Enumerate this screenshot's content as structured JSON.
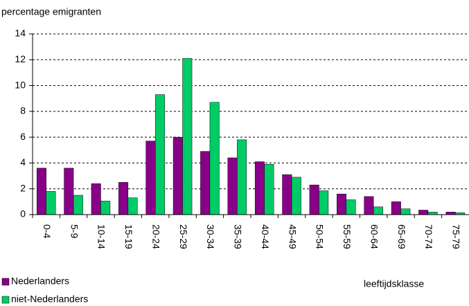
{
  "chart_data": {
    "type": "bar",
    "ylabel": "percentage emigranten",
    "xlabel": "leeftijdsklasse",
    "categories": [
      "0-4",
      "5-9",
      "10-14",
      "15-19",
      "20-24",
      "25-29",
      "30-34",
      "35-39",
      "40-44",
      "45-49",
      "50-54",
      "55-59",
      "60-64",
      "65-69",
      "70-74",
      "75-79"
    ],
    "series": [
      {
        "name": "Nederlanders",
        "color": "#880088",
        "values": [
          3.6,
          3.6,
          2.4,
          2.5,
          5.7,
          6.0,
          4.9,
          4.4,
          4.1,
          3.1,
          2.3,
          1.6,
          1.4,
          1.0,
          0.35,
          0.2
        ]
      },
      {
        "name": "niet-Nederlanders",
        "color": "#00cc66",
        "values": [
          1.8,
          1.5,
          1.05,
          1.3,
          9.3,
          12.1,
          8.7,
          5.8,
          3.9,
          2.9,
          1.85,
          1.15,
          0.6,
          0.45,
          0.2,
          0.15
        ]
      }
    ],
    "ylim": [
      0,
      14
    ],
    "yticks": [
      0,
      2,
      4,
      6,
      8,
      10,
      12,
      14
    ],
    "grid": true,
    "legend": "bottom-left"
  }
}
